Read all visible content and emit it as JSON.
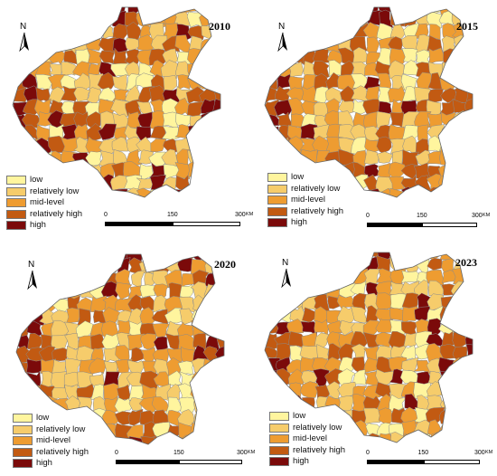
{
  "colors": {
    "low": "#fff59e",
    "relatively_low": "#f6cc6b",
    "mid_level": "#ee9c31",
    "relatively_high": "#c25a12",
    "high": "#7b0a0a",
    "border": "#8a8a8a"
  },
  "legend": [
    {
      "key": "low",
      "label": "low"
    },
    {
      "key": "relatively_low",
      "label": "relatively low"
    },
    {
      "key": "mid_level",
      "label": "mid-level"
    },
    {
      "key": "relatively_high",
      "label": "relatively high"
    },
    {
      "key": "high",
      "label": "high"
    }
  ],
  "north_label": "N",
  "scale": {
    "ticks": [
      "0",
      "150",
      "300"
    ],
    "unit": "KM"
  },
  "maps": [
    {
      "year": "2010"
    },
    {
      "year": "2015"
    },
    {
      "year": "2020"
    },
    {
      "year": "2023"
    }
  ]
}
